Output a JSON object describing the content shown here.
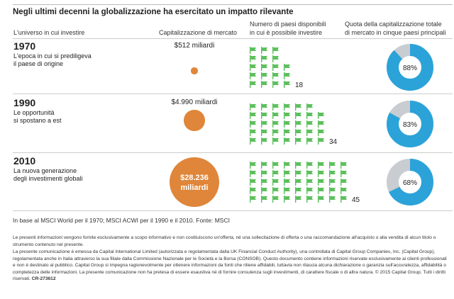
{
  "title": "Negli ultimi decenni la globalizzazione ha esercitato un impatto rilevante",
  "headers": {
    "col1": "L'universo in cui investire",
    "col2": "Capitalizzazione di mercato",
    "col3_line1": "Numero di paesi disponibili",
    "col3_line2": "in cui è possibile investire",
    "col4_line1": "Quota della capitalizzazione totale",
    "col4_line2": "di mercato in cinque paesi principali"
  },
  "rows": [
    {
      "year": "1970",
      "desc1": "L'epoca in cui si prediligeva",
      "desc2": "il paese di origine",
      "cap_label": "$512 miliardi",
      "cap_value": 512,
      "countries": 18,
      "countries_label": "18",
      "share": 88,
      "share_label": "88%"
    },
    {
      "year": "1990",
      "desc1": "Le opportunità",
      "desc2": "si spostano a est",
      "cap_label": "$4.990 miliardi",
      "cap_value": 4990,
      "countries": 34,
      "countries_label": "34",
      "share": 83,
      "share_label": "83%"
    },
    {
      "year": "2010",
      "desc1": "La nuova generazione",
      "desc2": "degli investimenti globali",
      "cap_label1": "$28.236",
      "cap_label2": "miliardi",
      "cap_value": 28236,
      "countries": 45,
      "countries_label": "45",
      "share": 68,
      "share_label": "68%"
    }
  ],
  "source": "In base al MSCI World per il 1970; MSCI ACWI per il 1990 e il 2010. Fonte: MSCI",
  "disclaimer1": "Le presenti informazioni vengono fornite esclusivamente a scopo informativo e non costituiscono un'offerta, né una sollecitazione di offerta o una raccomandazione all'acquisto o alla vendita di alcun titolo o strumento contenuto nel presente.",
  "disclaimer2": "La presente comunicazione è emessa da Capital International Limited (autorizzata e regolamentata dalla UK Financial Conduct Authority), una controllata di Capital Group Companies, Inc. (Capital Group), regolamentata anche in Italia attraverso la sua filiale dalla Commissione Nazionale per le Società e la Borsa (CONSOB). Questo documento contiene informazioni riservate esclusivamente ai clienti professionali e non è destinato al pubblico. Capital Group si impegna ragionevolmente per ottenere informazioni da fonti che ritiene affidabili, tuttavia non rilascia alcuna dichiarazione o garanzia sull'accuratezza, affidabilità o completezza delle informazioni. La presente comunicazione non ha pretesa di essere esaustiva né di fornire consulenza sugli investimenti, di carattere fiscale o di altra natura. © 2015 Capital Group. Tutti i diritti riservati.",
  "code": "CR-273612",
  "colors": {
    "bubble": "#df863a",
    "flag": "#5cbf5c",
    "share": "#2ba3d9",
    "rest": "#c9cdd1"
  },
  "chart_data": {
    "type": "infographic",
    "title": "Negli ultimi decenni la globalizzazione ha esercitato un impatto rilevante",
    "categories": [
      "1970",
      "1990",
      "2010"
    ],
    "series": [
      {
        "name": "Capitalizzazione di mercato (miliardi $)",
        "type": "bubble",
        "values": [
          512,
          4990,
          28236
        ]
      },
      {
        "name": "Numero di paesi disponibili",
        "type": "pictogram",
        "values": [
          18,
          34,
          45
        ]
      },
      {
        "name": "Quota top 5 paesi (%)",
        "type": "pie",
        "values": [
          88,
          83,
          68
        ]
      }
    ]
  }
}
